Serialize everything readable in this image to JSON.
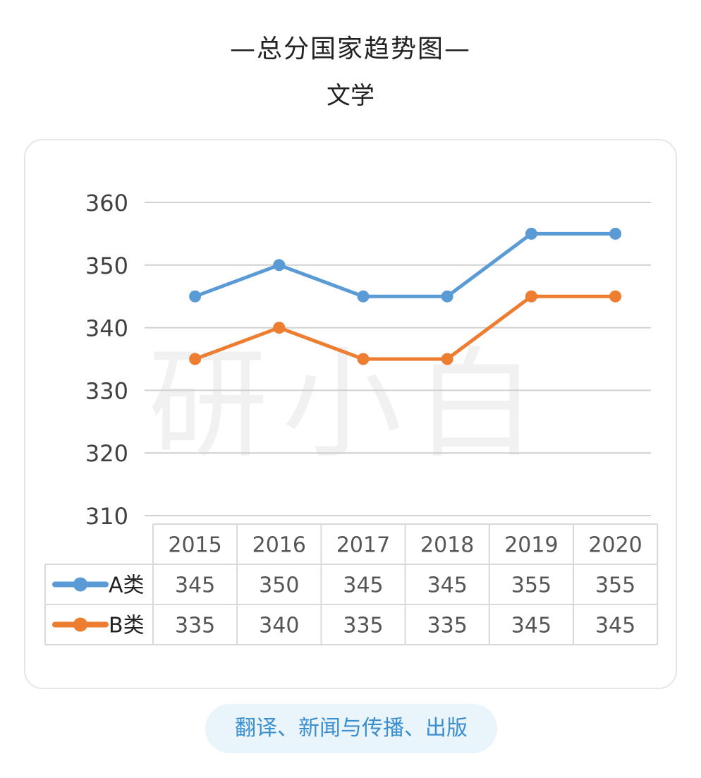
{
  "header": {
    "title": "—总分国家趋势图—",
    "subtitle": "文学"
  },
  "footer": {
    "category": "翻译、新闻与传播、出版"
  },
  "watermark": "研小白",
  "chart_data": {
    "type": "line",
    "title": "",
    "xlabel": "",
    "ylabel": "",
    "categories": [
      "2015",
      "2016",
      "2017",
      "2018",
      "2019",
      "2020"
    ],
    "ylim": [
      310,
      360
    ],
    "yticks": [
      310,
      320,
      330,
      340,
      350,
      360
    ],
    "grid": true,
    "legend": "data-table-left",
    "series": [
      {
        "name": "A类",
        "color": "#5b9bd5",
        "values": [
          345,
          350,
          345,
          345,
          355,
          355
        ]
      },
      {
        "name": "B类",
        "color": "#ed7d31",
        "values": [
          335,
          340,
          335,
          335,
          345,
          345
        ]
      }
    ]
  }
}
